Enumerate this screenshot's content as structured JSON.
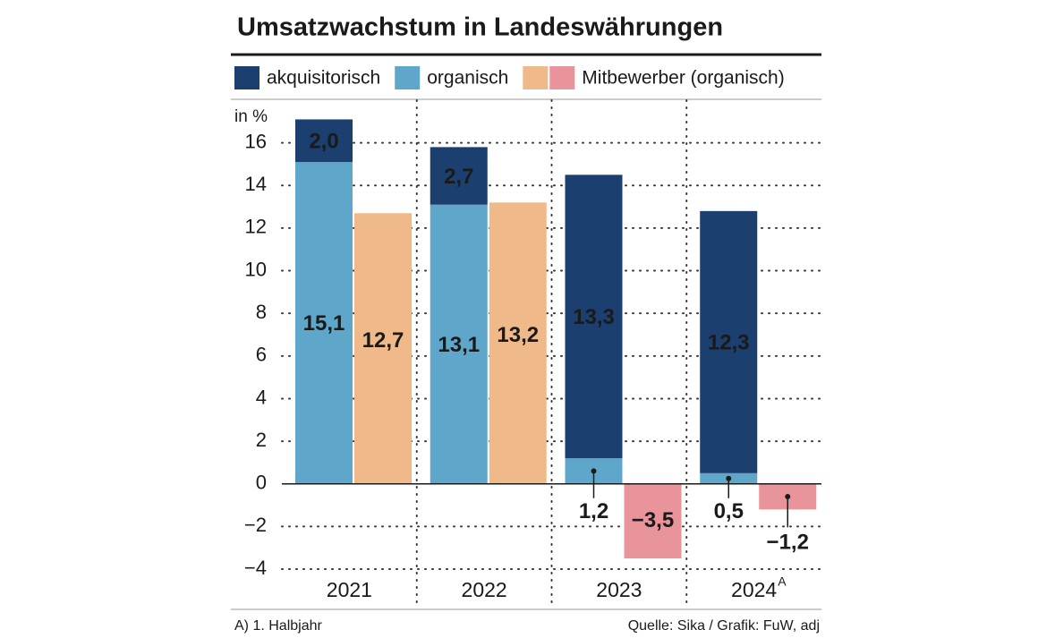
{
  "chart_data": {
    "type": "bar",
    "title": "Umsatzwachstum in Landeswährungen",
    "y_unit_label": "in %",
    "categories": [
      "2021",
      "2022",
      "2023",
      "2024"
    ],
    "category_superscripts": [
      null,
      null,
      null,
      "A"
    ],
    "series": [
      {
        "name": "akquisitorisch",
        "color": "#1b3f6e",
        "values": [
          2.0,
          2.7,
          13.3,
          12.3
        ],
        "value_labels": [
          "2,0",
          "2,7",
          "13,3",
          "12,3"
        ]
      },
      {
        "name": "organisch",
        "color": "#5fa7ca",
        "values": [
          15.1,
          13.1,
          1.2,
          0.5
        ],
        "value_labels": [
          "15,1",
          "13,1",
          "1,2",
          "0,5"
        ]
      },
      {
        "name": "Mitbewerber (organisch)",
        "color": "#efb98a",
        "negative_color": "#e9939b",
        "values": [
          12.7,
          13.2,
          -3.5,
          -1.2
        ],
        "value_labels": [
          "12,7",
          "13,2",
          "−3,5",
          "−1,2"
        ]
      }
    ],
    "ylim": [
      -4,
      18
    ],
    "yticks": [
      {
        "value": -4,
        "label": "−4"
      },
      {
        "value": -2,
        "label": "−2"
      },
      0,
      2,
      4,
      6,
      8,
      10,
      12,
      14,
      16
    ],
    "grid": true,
    "footnote": "A) 1. Halbjahr",
    "source": "Quelle: Sika / Grafik: FuW, adj"
  }
}
